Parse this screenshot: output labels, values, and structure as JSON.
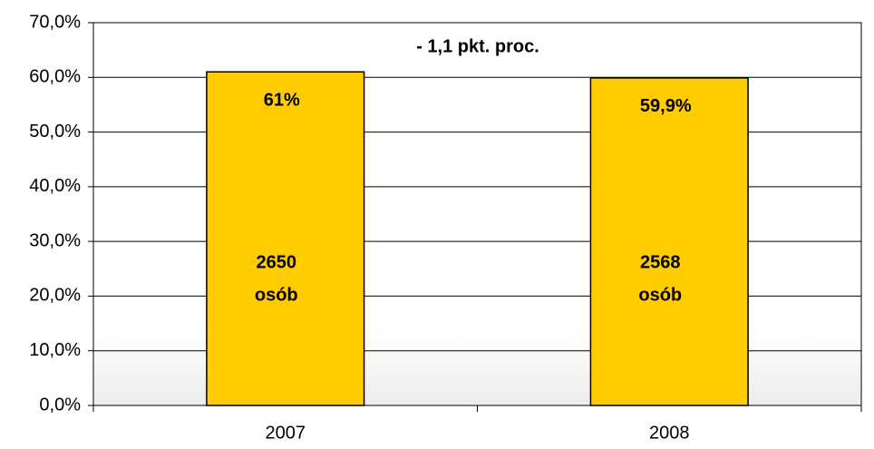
{
  "chart_data": {
    "type": "bar",
    "categories": [
      "2007",
      "2008"
    ],
    "values": [
      61,
      59.9
    ],
    "value_labels": [
      "61%",
      "59,9%"
    ],
    "bar_notes": [
      [
        "2650",
        "osób"
      ],
      [
        "2568",
        "osób"
      ]
    ],
    "annotation": "- 1,1 pkt. proc.",
    "color": "#ffcc00",
    "ylim": [
      0,
      70
    ],
    "yticks": [
      {
        "value": 0,
        "label": "0,0%"
      },
      {
        "value": 10,
        "label": "10,0%"
      },
      {
        "value": 20,
        "label": "20,0%"
      },
      {
        "value": 30,
        "label": "30,0%"
      },
      {
        "value": 40,
        "label": "40,0%"
      },
      {
        "value": 50,
        "label": "50,0%"
      },
      {
        "value": 60,
        "label": "60,0%"
      },
      {
        "value": 70,
        "label": "70,0%"
      }
    ],
    "grid": true
  }
}
